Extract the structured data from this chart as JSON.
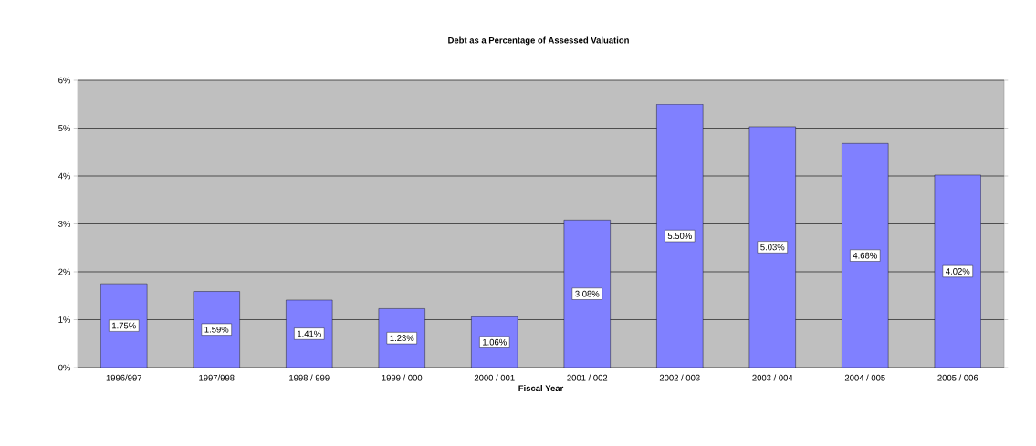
{
  "chart_data": {
    "type": "bar",
    "title": "Debt as a Percentage of Assessed Valuation",
    "xlabel": "Fiscal Year",
    "categories": [
      "1996/997",
      "1997/998",
      "1998 / 999",
      "1999 / 000",
      "2000 / 001",
      "2001 / 002",
      "2002 / 003",
      "2003 / 004",
      "2004 / 005",
      "2005 / 006"
    ],
    "values": [
      1.75,
      1.59,
      1.41,
      1.23,
      1.06,
      3.08,
      5.5,
      5.03,
      4.68,
      4.02
    ],
    "value_labels": [
      "1.75%",
      "1.59%",
      "1.41%",
      "1.23%",
      "1.06%",
      "3.08%",
      "5.50%",
      "5.03%",
      "4.68%",
      "4.02%"
    ],
    "color": "#8080ff",
    "ylim": [
      0,
      6
    ],
    "yticks": [
      {
        "value": 0,
        "label": "0%"
      },
      {
        "value": 1,
        "label": "1%"
      },
      {
        "value": 2,
        "label": "2%"
      },
      {
        "value": 3,
        "label": "3%"
      },
      {
        "value": 4,
        "label": "4%"
      },
      {
        "value": 5,
        "label": "5%"
      },
      {
        "value": 6,
        "label": "6%"
      }
    ],
    "grid": "y"
  }
}
